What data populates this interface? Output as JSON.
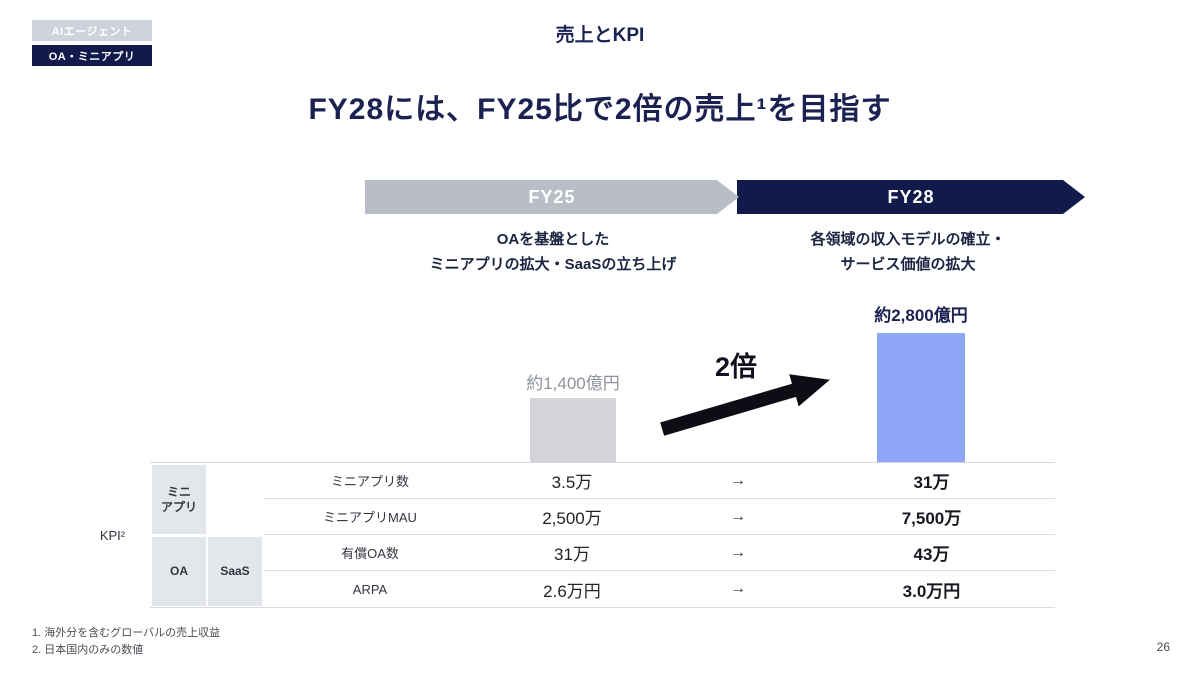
{
  "badges": {
    "tag_inactive": "AIエージェント",
    "tag_active": "OA・ミニアプリ"
  },
  "header": {
    "title": "売上とKPI",
    "headline": "FY28には、FY25比で2倍の売上¹を目指す"
  },
  "timeline": {
    "fy25": {
      "label": "FY25",
      "desc_line1": "OAを基盤とした",
      "desc_line2": "ミニアプリの拡大・SaaSの立ち上げ"
    },
    "fy28": {
      "label": "FY28",
      "desc_line1": "各領域の収入モデルの確立・",
      "desc_line2": "サービス価値の拡大"
    }
  },
  "chart_data": {
    "type": "bar",
    "categories": [
      "FY25",
      "FY28"
    ],
    "values": [
      1400,
      2800
    ],
    "unit": "億円",
    "value_labels": [
      "約1,400億円",
      "約2,800億円"
    ],
    "multiplier_label": "2倍",
    "bar_colors": [
      "#d2d4d9",
      "#8da6f6"
    ],
    "title": "売上とKPI",
    "legend": "none",
    "grid": "off"
  },
  "colors": {
    "navy": "#121a4b",
    "banner_gray": "#b9bec6",
    "bar_gray": "#d2d4d9",
    "bar_blue": "#8da6f6"
  },
  "kpi_table": {
    "axis_label": "KPI²",
    "row_groups": {
      "miniapp_line1": "ミニ",
      "miniapp_line2": "アプリ",
      "oa": "OA",
      "saas": "SaaS"
    },
    "change_arrow": "→",
    "rows": [
      {
        "metric": "ミニアプリ数",
        "fy25": "3.5万",
        "fy28": "31万"
      },
      {
        "metric": "ミニアプリMAU",
        "fy25": "2,500万",
        "fy28": "7,500万"
      },
      {
        "metric": "有償OA数",
        "fy25": "31万",
        "fy28": "43万"
      },
      {
        "metric": "ARPA",
        "fy25": "2.6万円",
        "fy28": "3.0万円"
      }
    ]
  },
  "footnotes": [
    "1.  海外分を含むグローバルの売上収益",
    "2.  日本国内のみの数値"
  ],
  "page_number": "26"
}
